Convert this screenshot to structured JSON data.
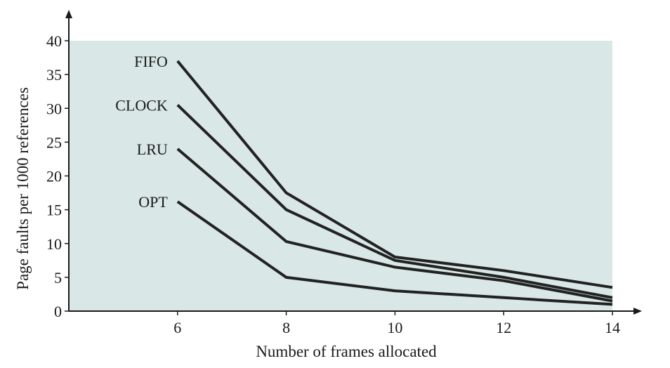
{
  "chart_data": {
    "type": "line",
    "title": "",
    "xlabel": "Number of frames allocated",
    "ylabel": "Page faults per 1000 references",
    "xlim": [
      4,
      14
    ],
    "ylim": [
      0,
      40
    ],
    "x_ticks": [
      6,
      8,
      10,
      12,
      14
    ],
    "y_ticks": [
      0,
      5,
      10,
      15,
      20,
      25,
      30,
      35,
      40
    ],
    "grid": false,
    "legend": "inline labels at left end of each line",
    "colors": {
      "background": "#d9e8e6",
      "line": "#222222",
      "axis": "#1a1a1a"
    },
    "series": [
      {
        "name": "FIFO",
        "x": [
          6,
          8,
          10,
          12,
          14
        ],
        "y": [
          37,
          17.5,
          8,
          6,
          3.5
        ]
      },
      {
        "name": "CLOCK",
        "x": [
          6,
          8,
          10,
          12,
          14
        ],
        "y": [
          30.5,
          15,
          7.5,
          5,
          2
        ]
      },
      {
        "name": "LRU",
        "x": [
          6,
          8,
          10,
          12,
          14
        ],
        "y": [
          24,
          10.3,
          6.5,
          4.5,
          1.5
        ]
      },
      {
        "name": "OPT",
        "x": [
          6,
          8,
          10,
          12,
          14
        ],
        "y": [
          16.2,
          5,
          3,
          2,
          1
        ]
      }
    ]
  }
}
